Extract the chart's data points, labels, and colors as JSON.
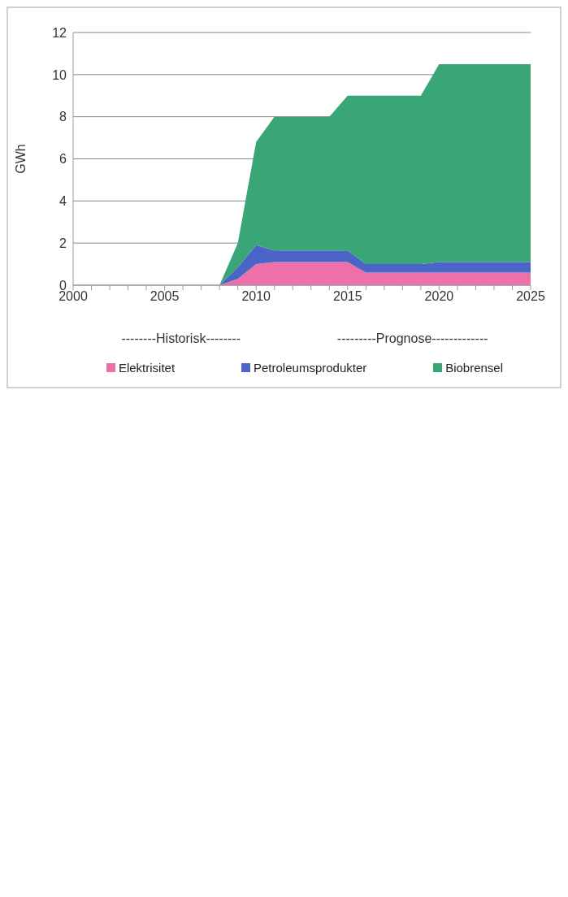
{
  "chart_data": {
    "type": "area",
    "stacked": true,
    "ylabel": "GWh",
    "x": [
      2008,
      2009,
      2010,
      2011,
      2012,
      2013,
      2014,
      2015,
      2016,
      2017,
      2018,
      2019,
      2020,
      2021,
      2022,
      2023,
      2024,
      2025
    ],
    "series": [
      {
        "name": "Elektrisitet",
        "color": "#ef6fa9",
        "values": [
          0,
          0.3,
          1.0,
          1.1,
          1.1,
          1.1,
          1.1,
          1.1,
          0.6,
          0.6,
          0.6,
          0.6,
          0.6,
          0.6,
          0.6,
          0.6,
          0.6,
          0.6
        ]
      },
      {
        "name": "Petroleumsprodukter",
        "color": "#4a64c8",
        "values": [
          0,
          0.55,
          0.9,
          0.55,
          0.55,
          0.55,
          0.55,
          0.55,
          0.4,
          0.4,
          0.4,
          0.4,
          0.5,
          0.5,
          0.5,
          0.5,
          0.5,
          0.5
        ]
      },
      {
        "name": "Biobrensel",
        "color": "#3aa677",
        "values": [
          0,
          1.15,
          4.9,
          6.35,
          6.35,
          6.35,
          6.35,
          7.35,
          8.0,
          8.0,
          8.0,
          8.0,
          9.4,
          9.4,
          9.4,
          9.4,
          9.4,
          9.4
        ]
      }
    ],
    "xlim": [
      2000,
      2025
    ],
    "xticks": [
      2000,
      {
        "value": 2001,
        "label": null
      },
      {
        "value": 2002,
        "label": null
      },
      {
        "value": 2003,
        "label": null
      },
      {
        "value": 2004,
        "label": null
      },
      2005,
      {
        "value": 2006,
        "label": null
      },
      {
        "value": 2007,
        "label": null
      },
      {
        "value": 2008,
        "label": null
      },
      {
        "value": 2009,
        "label": null
      },
      2010,
      {
        "value": 2011,
        "label": null
      },
      {
        "value": 2012,
        "label": null
      },
      {
        "value": 2013,
        "label": null
      },
      {
        "value": 2014,
        "label": null
      },
      2015,
      {
        "value": 2016,
        "label": null
      },
      {
        "value": 2017,
        "label": null
      },
      {
        "value": 2018,
        "label": null
      },
      {
        "value": 2019,
        "label": null
      },
      2020,
      {
        "value": 2021,
        "label": null
      },
      {
        "value": 2022,
        "label": null
      },
      {
        "value": 2023,
        "label": null
      },
      {
        "value": 2024,
        "label": null
      },
      2025
    ],
    "ylim": [
      0,
      12
    ],
    "yticks": [
      0,
      2,
      4,
      6,
      8,
      10,
      12
    ],
    "grid": "y",
    "legend": "bottom",
    "annotations": [
      "--------Historisk--------",
      "---------Prognose-------------"
    ]
  }
}
